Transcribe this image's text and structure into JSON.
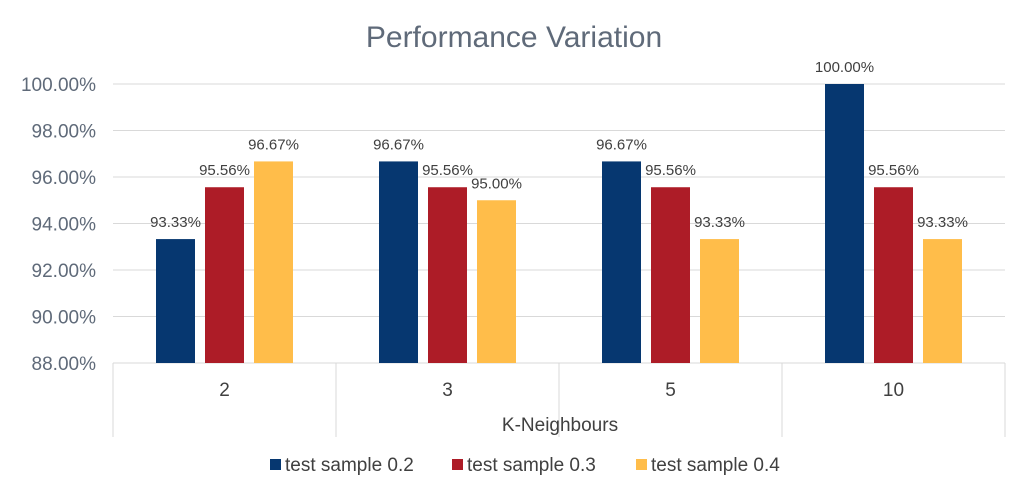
{
  "chart_data": {
    "type": "bar",
    "title": "Performance Variation",
    "xlabel": "K-Neighbours",
    "ylabel": "",
    "categories": [
      "2",
      "3",
      "5",
      "10"
    ],
    "ylim": [
      88,
      100
    ],
    "yticks": [
      "88.00%",
      "90.00%",
      "92.00%",
      "94.00%",
      "96.00%",
      "98.00%",
      "100.00%"
    ],
    "grid": true,
    "legend_position": "bottom",
    "series": [
      {
        "name": "test sample 0.2",
        "color": "#063770",
        "values": [
          93.33,
          96.67,
          96.67,
          100.0
        ],
        "labels": [
          "93.33%",
          "96.67%",
          "96.67%",
          "100.00%"
        ]
      },
      {
        "name": "test sample 0.3",
        "color": "#ad1c27",
        "values": [
          95.56,
          95.56,
          95.56,
          95.56
        ],
        "labels": [
          "95.56%",
          "95.56%",
          "95.56%",
          "95.56%"
        ]
      },
      {
        "name": "test sample 0.4",
        "color": "#ffbd4a",
        "values": [
          96.67,
          95.0,
          93.33,
          93.33
        ],
        "labels": [
          "96.67%",
          "95.00%",
          "93.33%",
          "93.33%"
        ]
      }
    ]
  }
}
